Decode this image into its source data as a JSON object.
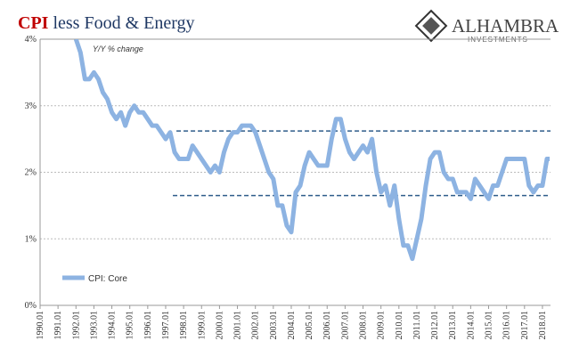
{
  "chart_data": {
    "type": "line",
    "title_highlight": "CPI",
    "title": "less Food & Energy",
    "subtitle": "Y/Y % change",
    "logo": {
      "name": "ALHAMBRA",
      "tagline": "INVESTMENTS"
    },
    "x": [
      1992.0,
      1992.25,
      1992.5,
      1992.75,
      1993.0,
      1993.25,
      1993.5,
      1993.75,
      1994.0,
      1994.25,
      1994.5,
      1994.75,
      1995.0,
      1995.25,
      1995.5,
      1995.75,
      1996.0,
      1996.25,
      1996.5,
      1996.75,
      1997.0,
      1997.25,
      1997.5,
      1997.75,
      1998.0,
      1998.25,
      1998.5,
      1998.75,
      1999.0,
      1999.25,
      1999.5,
      1999.75,
      2000.0,
      2000.25,
      2000.5,
      2000.75,
      2001.0,
      2001.25,
      2001.5,
      2001.75,
      2002.0,
      2002.25,
      2002.5,
      2002.75,
      2003.0,
      2003.25,
      2003.5,
      2003.75,
      2004.0,
      2004.25,
      2004.5,
      2004.75,
      2005.0,
      2005.25,
      2005.5,
      2005.75,
      2006.0,
      2006.25,
      2006.5,
      2006.75,
      2007.0,
      2007.25,
      2007.5,
      2007.75,
      2008.0,
      2008.25,
      2008.5,
      2008.75,
      2009.0,
      2009.25,
      2009.5,
      2009.75,
      2010.0,
      2010.25,
      2010.5,
      2010.75,
      2011.0,
      2011.25,
      2011.5,
      2011.75,
      2012.0,
      2012.25,
      2012.5,
      2012.75,
      2013.0,
      2013.25,
      2013.5,
      2013.75,
      2014.0,
      2014.25,
      2014.5,
      2014.75,
      2015.0,
      2015.25,
      2015.5,
      2015.75,
      2016.0,
      2016.25,
      2016.5,
      2016.75,
      2017.0,
      2017.25,
      2017.5,
      2017.75,
      2018.0,
      2018.25,
      2018.4
    ],
    "series": [
      {
        "name": "CPI: Core",
        "color": "#8db3e2",
        "values": [
          4.0,
          3.8,
          3.4,
          3.4,
          3.5,
          3.4,
          3.2,
          3.1,
          2.9,
          2.8,
          2.9,
          2.7,
          2.9,
          3.0,
          2.9,
          2.9,
          2.8,
          2.7,
          2.7,
          2.6,
          2.5,
          2.6,
          2.3,
          2.2,
          2.2,
          2.2,
          2.4,
          2.3,
          2.2,
          2.1,
          2.0,
          2.1,
          2.0,
          2.3,
          2.5,
          2.6,
          2.6,
          2.7,
          2.7,
          2.7,
          2.6,
          2.4,
          2.2,
          2.0,
          1.9,
          1.5,
          1.5,
          1.2,
          1.1,
          1.7,
          1.8,
          2.1,
          2.3,
          2.2,
          2.1,
          2.1,
          2.1,
          2.5,
          2.8,
          2.8,
          2.5,
          2.3,
          2.2,
          2.3,
          2.4,
          2.3,
          2.5,
          2.0,
          1.7,
          1.8,
          1.5,
          1.8,
          1.3,
          0.9,
          0.9,
          0.7,
          1.0,
          1.3,
          1.8,
          2.2,
          2.3,
          2.3,
          2.0,
          1.9,
          1.9,
          1.7,
          1.7,
          1.7,
          1.6,
          1.9,
          1.8,
          1.7,
          1.6,
          1.8,
          1.8,
          2.0,
          2.2,
          2.2,
          2.2,
          2.2,
          2.2,
          1.8,
          1.7,
          1.8,
          1.8,
          2.2,
          2.2
        ]
      }
    ],
    "reference_lines": [
      {
        "value": 2.62,
        "from": 1997.6,
        "color": "#2e5c8a"
      },
      {
        "value": 1.65,
        "from": 1997.4,
        "color": "#2e5c8a"
      }
    ],
    "xlim": [
      1990,
      2018.45
    ],
    "xticks": [
      {
        "value": 1990,
        "label": "1990.01"
      },
      {
        "value": 1991,
        "label": "1991.01"
      },
      {
        "value": 1992,
        "label": "1992.01"
      },
      {
        "value": 1993,
        "label": "1993.01"
      },
      {
        "value": 1994,
        "label": "1994.01"
      },
      {
        "value": 1995,
        "label": "1995.01"
      },
      {
        "value": 1996,
        "label": "1996.01"
      },
      {
        "value": 1997,
        "label": "1997.01"
      },
      {
        "value": 1998,
        "label": "1998.01"
      },
      {
        "value": 1999,
        "label": "1999.01"
      },
      {
        "value": 2000,
        "label": "2000.01"
      },
      {
        "value": 2001,
        "label": "2001.01"
      },
      {
        "value": 2002,
        "label": "2002.01"
      },
      {
        "value": 2003,
        "label": "2003.01"
      },
      {
        "value": 2004,
        "label": "2004.01"
      },
      {
        "value": 2005,
        "label": "2005.01"
      },
      {
        "value": 2006,
        "label": "2006.01"
      },
      {
        "value": 2007,
        "label": "2007.01"
      },
      {
        "value": 2008,
        "label": "2008.01"
      },
      {
        "value": 2009,
        "label": "2009.01"
      },
      {
        "value": 2010,
        "label": "2010.01"
      },
      {
        "value": 2011,
        "label": "2011.01"
      },
      {
        "value": 2012,
        "label": "2012.01"
      },
      {
        "value": 2013,
        "label": "2013.01"
      },
      {
        "value": 2014,
        "label": "2014.01"
      },
      {
        "value": 2015,
        "label": "2015.01"
      },
      {
        "value": 2016,
        "label": "2016.01"
      },
      {
        "value": 2017,
        "label": "2017.01"
      },
      {
        "value": 2018,
        "label": "2018.01"
      }
    ],
    "ylim": [
      0,
      4
    ],
    "yticks": [
      {
        "value": 0,
        "label": "0%"
      },
      {
        "value": 1,
        "label": "1%"
      },
      {
        "value": 2,
        "label": "2%"
      },
      {
        "value": 3,
        "label": "3%"
      },
      {
        "value": 4,
        "label": "4%"
      }
    ],
    "grid": true,
    "legend": "lower left"
  }
}
